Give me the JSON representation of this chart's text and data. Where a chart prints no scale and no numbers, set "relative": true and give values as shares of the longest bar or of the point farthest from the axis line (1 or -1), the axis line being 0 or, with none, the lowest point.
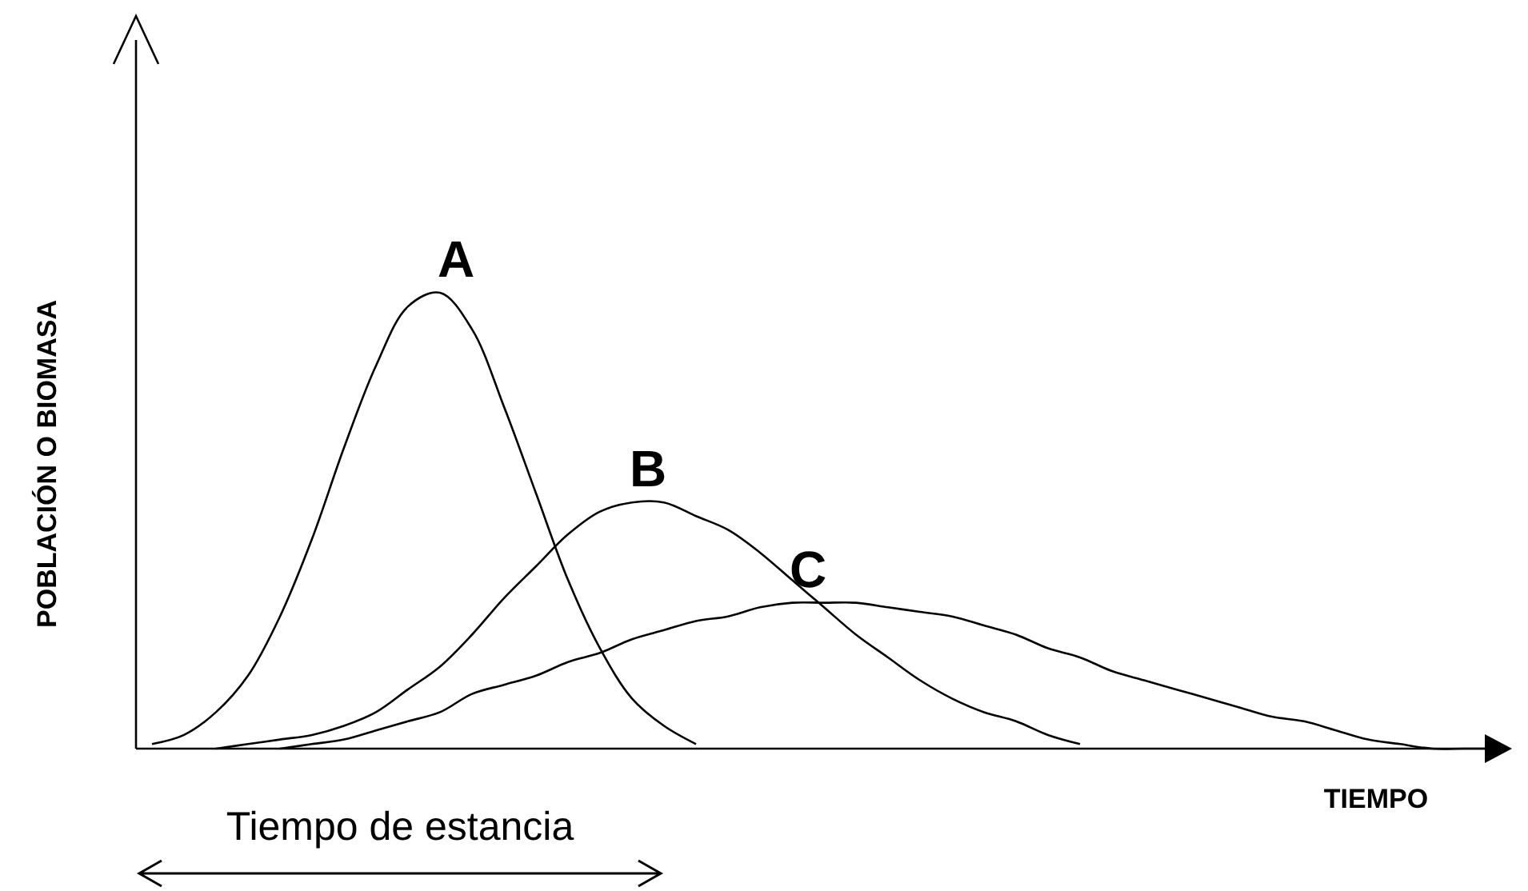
{
  "chart_data": {
    "type": "line",
    "relative": true,
    "xlabel": "TIEMPO",
    "ylabel": "POBLACIÓN O BIOMASA",
    "marker": "none",
    "line_style": "solid",
    "categories": [
      null,
      null,
      null,
      null,
      null,
      null,
      null,
      null,
      null,
      null,
      null,
      null,
      null,
      null,
      null,
      null,
      null,
      null,
      null,
      null,
      null,
      null,
      null,
      null,
      null,
      null,
      null,
      null,
      null,
      null,
      null,
      null,
      null,
      null,
      null,
      null,
      null,
      null,
      null,
      null,
      null,
      null,
      null
    ],
    "series": [
      {
        "name": "A",
        "color": "#000000",
        "values": [
          0.01,
          0.03,
          0.08,
          0.16,
          0.29,
          0.46,
          0.66,
          0.84,
          0.97,
          1.0,
          0.92,
          0.75,
          0.56,
          0.37,
          0.22,
          0.11,
          0.05,
          0.01,
          null,
          null,
          null,
          null,
          null,
          null,
          null,
          null,
          null,
          null,
          null,
          null,
          null,
          null,
          null,
          null,
          null,
          null,
          null,
          null,
          null,
          null,
          null,
          null,
          null
        ]
      },
      {
        "name": "B",
        "color": "#000000",
        "values": [
          null,
          null,
          0.0,
          0.01,
          0.02,
          0.03,
          0.05,
          0.08,
          0.13,
          0.18,
          0.25,
          0.33,
          0.4,
          0.47,
          0.52,
          0.54,
          0.54,
          0.51,
          0.48,
          0.43,
          0.37,
          0.31,
          0.25,
          0.2,
          0.15,
          0.11,
          0.08,
          0.06,
          0.03,
          0.01,
          null,
          null,
          null,
          null,
          null,
          null,
          null,
          null,
          null,
          null,
          null,
          null,
          null
        ]
      },
      {
        "name": "C",
        "color": "#000000",
        "values": [
          null,
          null,
          null,
          null,
          0.0,
          0.01,
          0.02,
          0.04,
          0.06,
          0.08,
          0.12,
          0.14,
          0.16,
          0.19,
          0.21,
          0.24,
          0.26,
          0.28,
          0.29,
          0.31,
          0.32,
          0.32,
          0.32,
          0.31,
          0.3,
          0.29,
          0.27,
          0.25,
          0.22,
          0.2,
          0.17,
          0.15,
          0.13,
          0.11,
          0.09,
          0.07,
          0.06,
          0.04,
          0.02,
          0.01,
          0.0,
          0.0,
          0.0
        ]
      }
    ],
    "annotations": [
      "Tiempo de estancia"
    ]
  }
}
